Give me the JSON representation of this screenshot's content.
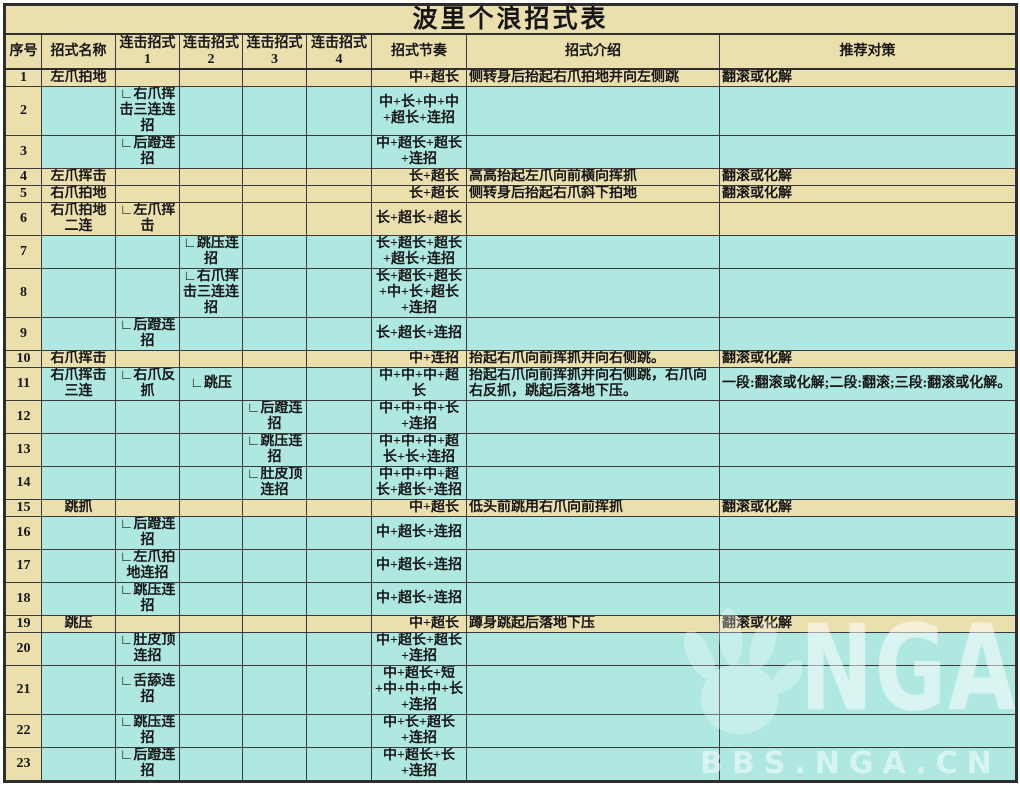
{
  "title": "波里个浪招式表",
  "colors": {
    "tan": "#ecdfae",
    "cyan": "#aee8e1",
    "border": "#3a3a3a",
    "outer_border": "#2e2e2e",
    "page_bg": "#ffffff"
  },
  "watermark": {
    "logo_icon": "nga-claw-icon",
    "text_large": "NGA",
    "text_small": "BBS.NGA.CN"
  },
  "table": {
    "headers": [
      "序号",
      "招式名称",
      "连击招式\n1",
      "连击招式\n2",
      "连击招式\n3",
      "连击招式\n4",
      "招式节奏",
      "招式介绍",
      "推荐对策"
    ],
    "rows": [
      {
        "no": "1",
        "name": "左爪拍地",
        "c1": "",
        "c2": "",
        "c3": "",
        "c4": "",
        "rhythm": "中+超长",
        "desc": "侧转身后抬起右爪拍地并向左侧跳",
        "counter": "翻滚或化解",
        "main": true
      },
      {
        "no": "2",
        "name": "",
        "c1": "∟右爪挥击三连连招",
        "c2": "",
        "c3": "",
        "c4": "",
        "rhythm": "中+长+中+中+超长+连招",
        "desc": "",
        "counter": "",
        "main": false
      },
      {
        "no": "3",
        "name": "",
        "c1": "∟后蹬连招",
        "c2": "",
        "c3": "",
        "c4": "",
        "rhythm": "中+超长+超长+连招",
        "desc": "",
        "counter": "",
        "main": false
      },
      {
        "no": "4",
        "name": "左爪挥击",
        "c1": "",
        "c2": "",
        "c3": "",
        "c4": "",
        "rhythm": "长+超长",
        "desc": "高高抬起左爪向前横向挥抓",
        "counter": "翻滚或化解",
        "main": true
      },
      {
        "no": "5",
        "name": "右爪拍地",
        "c1": "",
        "c2": "",
        "c3": "",
        "c4": "",
        "rhythm": "长+超长",
        "desc": "侧转身后抬起右爪斜下拍地",
        "counter": "翻滚或化解",
        "main": true
      },
      {
        "no": "6",
        "name": "右爪拍地二连",
        "c1": "∟左爪挥击",
        "c2": "",
        "c3": "",
        "c4": "",
        "rhythm": "长+超长+超长",
        "desc": "",
        "counter": "",
        "main": true
      },
      {
        "no": "7",
        "name": "",
        "c1": "",
        "c2": "∟跳压连招",
        "c3": "",
        "c4": "",
        "rhythm": "长+超长+超长+超长+连招",
        "desc": "",
        "counter": "",
        "main": false
      },
      {
        "no": "8",
        "name": "",
        "c1": "",
        "c2": "∟右爪挥击三连连招",
        "c3": "",
        "c4": "",
        "rhythm": "长+超长+超长+中+长+超长+连招",
        "desc": "",
        "counter": "",
        "main": false
      },
      {
        "no": "9",
        "name": "",
        "c1": "∟后蹬连招",
        "c2": "",
        "c3": "",
        "c4": "",
        "rhythm": "长+超长+连招",
        "desc": "",
        "counter": "",
        "main": false
      },
      {
        "no": "10",
        "name": "右爪挥击",
        "c1": "",
        "c2": "",
        "c3": "",
        "c4": "",
        "rhythm": "中+连招",
        "desc": "抬起右爪向前挥抓并向右侧跳。",
        "counter": "翻滚或化解",
        "main": true
      },
      {
        "no": "11",
        "name": "右爪挥击三连",
        "c1": "∟右爪反抓",
        "c2": "∟跳压",
        "c3": "",
        "c4": "",
        "rhythm": "中+中+中+超长",
        "desc": "抬起右爪向前挥抓并向右侧跳，右爪向右反抓，跳起后落地下压。",
        "counter": "一段:翻滚或化解;二段:翻滚;三段:翻滚或化解。",
        "main": false
      },
      {
        "no": "12",
        "name": "",
        "c1": "",
        "c2": "",
        "c3": "∟后蹬连招",
        "c4": "",
        "rhythm": "中+中+中+长+连招",
        "desc": "",
        "counter": "",
        "main": false
      },
      {
        "no": "13",
        "name": "",
        "c1": "",
        "c2": "",
        "c3": "∟跳压连招",
        "c4": "",
        "rhythm": "中+中+中+超长+长+连招",
        "desc": "",
        "counter": "",
        "main": false
      },
      {
        "no": "14",
        "name": "",
        "c1": "",
        "c2": "",
        "c3": "∟肚皮顶连招",
        "c4": "",
        "rhythm": "中+中+中+超长+超长+连招",
        "desc": "",
        "counter": "",
        "main": false
      },
      {
        "no": "15",
        "name": "跳抓",
        "c1": "",
        "c2": "",
        "c3": "",
        "c4": "",
        "rhythm": "中+超长",
        "desc": "低头前跳用右爪向前挥抓",
        "counter": "翻滚或化解",
        "main": true
      },
      {
        "no": "16",
        "name": "",
        "c1": "∟后蹬连招",
        "c2": "",
        "c3": "",
        "c4": "",
        "rhythm": "中+超长+连招",
        "desc": "",
        "counter": "",
        "main": false
      },
      {
        "no": "17",
        "name": "",
        "c1": "∟左爪拍地连招",
        "c2": "",
        "c3": "",
        "c4": "",
        "rhythm": "中+超长+连招",
        "desc": "",
        "counter": "",
        "main": false
      },
      {
        "no": "18",
        "name": "",
        "c1": "∟跳压连招",
        "c2": "",
        "c3": "",
        "c4": "",
        "rhythm": "中+超长+连招",
        "desc": "",
        "counter": "",
        "main": false
      },
      {
        "no": "19",
        "name": "跳压",
        "c1": "",
        "c2": "",
        "c3": "",
        "c4": "",
        "rhythm": "中+超长",
        "desc": "蹲身跳起后落地下压",
        "counter": "翻滚或化解",
        "main": true
      },
      {
        "no": "20",
        "name": "",
        "c1": "∟肚皮顶连招",
        "c2": "",
        "c3": "",
        "c4": "",
        "rhythm": "中+超长+超长+连招",
        "desc": "",
        "counter": "",
        "main": false
      },
      {
        "no": "21",
        "name": "",
        "c1": "∟舌舔连招",
        "c2": "",
        "c3": "",
        "c4": "",
        "rhythm": "中+超长+短+中+中+中+长+连招",
        "desc": "",
        "counter": "",
        "main": false
      },
      {
        "no": "22",
        "name": "",
        "c1": "∟跳压连招",
        "c2": "",
        "c3": "",
        "c4": "",
        "rhythm": "中+长+超长+连招",
        "desc": "",
        "counter": "",
        "main": false
      },
      {
        "no": "23",
        "name": "",
        "c1": "∟后蹬连招",
        "c2": "",
        "c3": "",
        "c4": "",
        "rhythm": "中+超长+长+连招",
        "desc": "",
        "counter": "",
        "main": false
      }
    ]
  }
}
